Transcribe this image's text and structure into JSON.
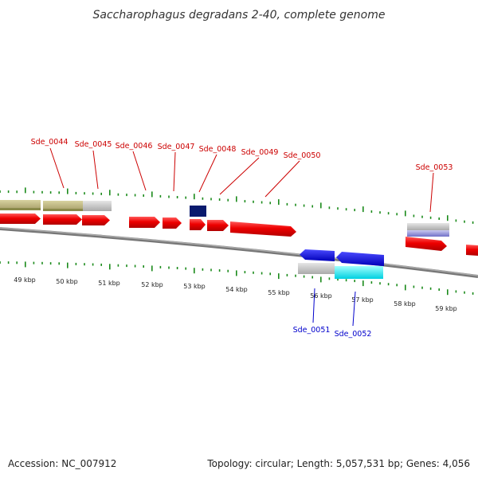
{
  "title": "Saccharophagus degradans 2-40, complete genome",
  "footer": {
    "accession": "Accession: NC_007912",
    "summary": "Topology: circular; Length: 5,057,531 bp; Genes: 4,056"
  },
  "colors": {
    "forward_label": "#cc0000",
    "reverse_label": "#0000cc",
    "red_gene": "#ee0000",
    "tick": "#1a8a1a",
    "backbone": "#888888"
  },
  "kbp_labels": [
    "49 kbp",
    "50 kbp",
    "51 kbp",
    "52 kbp",
    "53 kbp",
    "54 kbp",
    "55 kbp",
    "56 kbp",
    "57 kbp",
    "58 kbp",
    "59 kbp"
  ],
  "forward_genes": [
    {
      "label": "Sde_0044",
      "icon": "tan-bar"
    },
    {
      "label": "Sde_0045",
      "icon": "tan-bar"
    },
    {
      "label": "Sde_0046",
      "icon": "red-arrow"
    },
    {
      "label": "Sde_0047",
      "icon": "red-arrow"
    },
    {
      "label": "Sde_0048",
      "icon": "navy-box"
    },
    {
      "label": "Sde_0049",
      "icon": "red-arrow"
    },
    {
      "label": "Sde_0050",
      "icon": "red-arrow"
    },
    {
      "label": "Sde_0053",
      "icon": "lavender-bar"
    }
  ],
  "reverse_genes": [
    {
      "label": "Sde_0051",
      "icon": "blue-arrow"
    },
    {
      "label": "Sde_0052",
      "icon": "blue-arrow"
    }
  ]
}
